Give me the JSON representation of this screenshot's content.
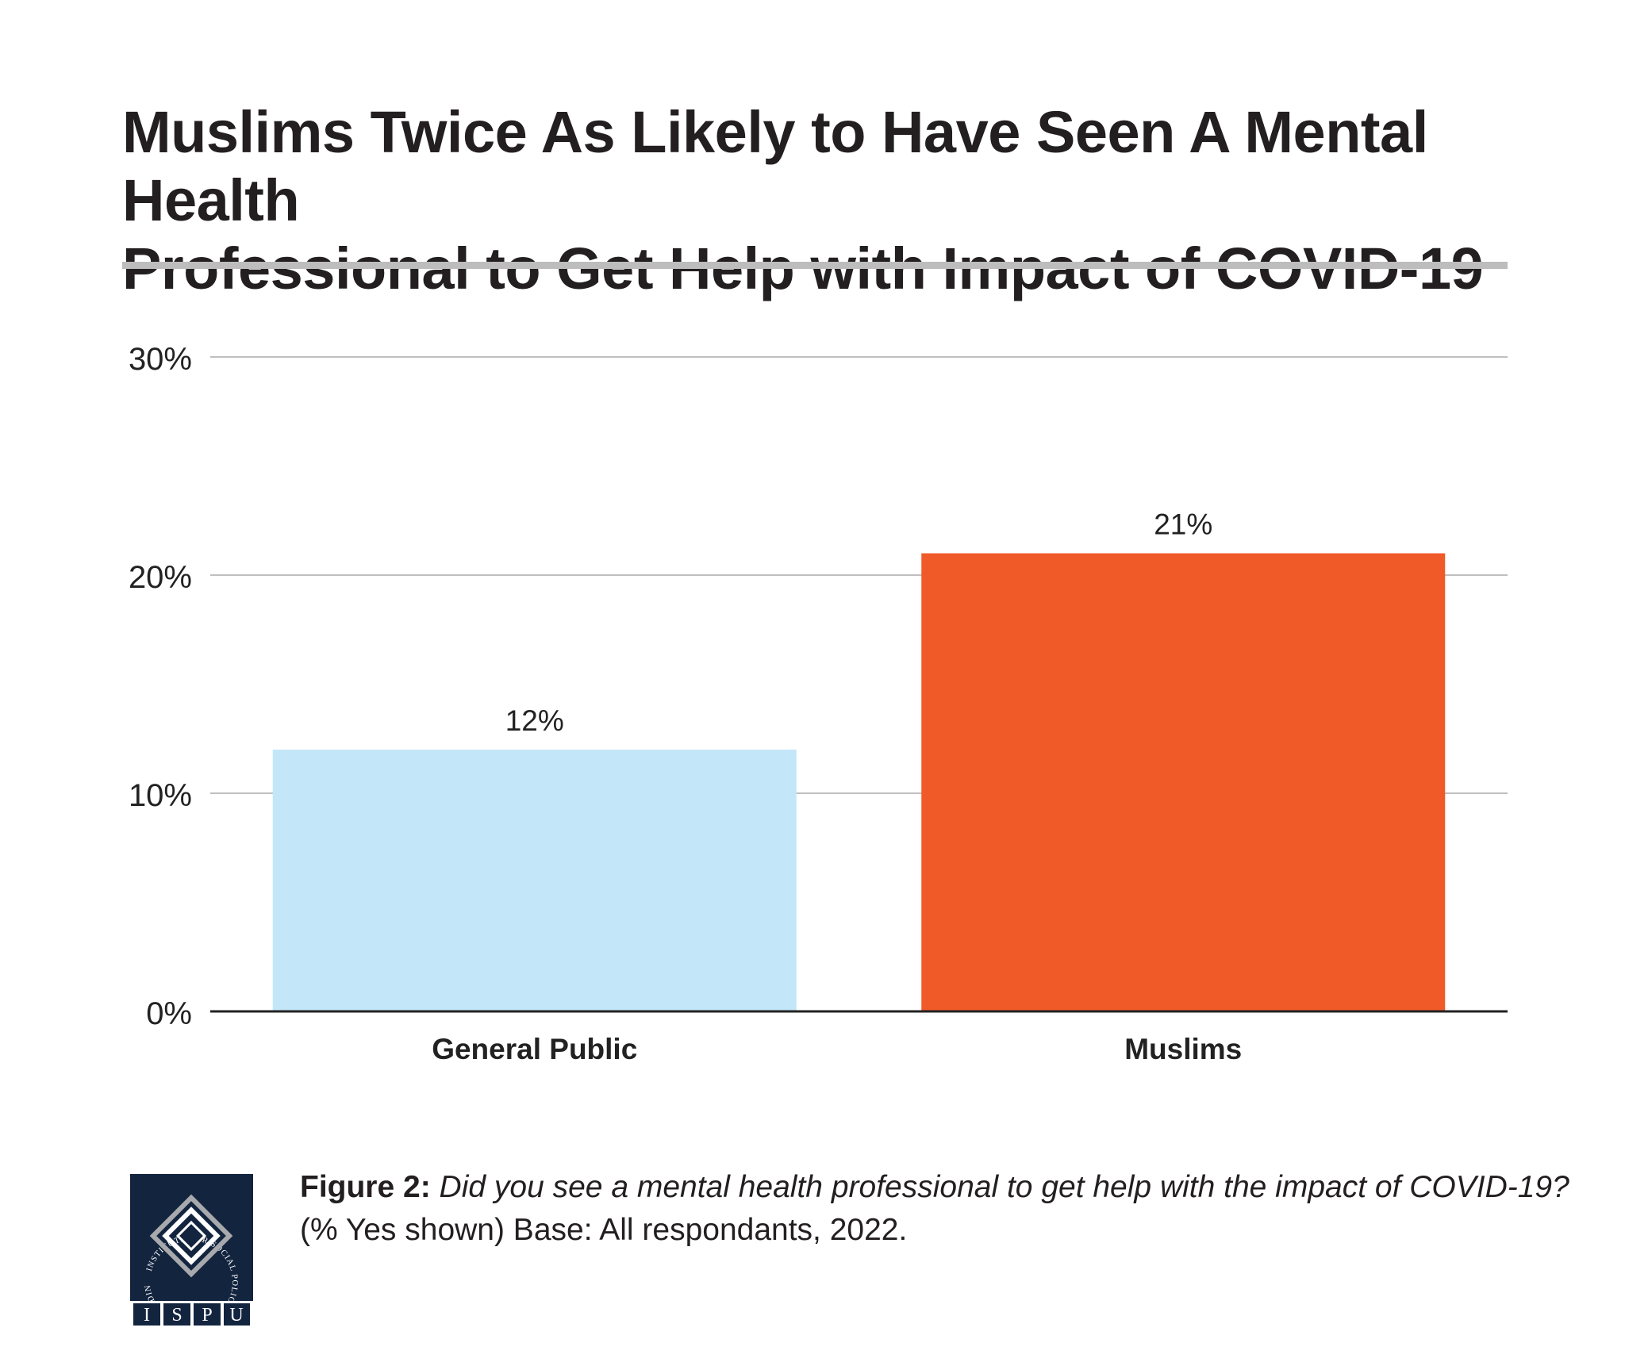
{
  "chart_data": {
    "type": "bar",
    "title": "Muslims Twice As Likely to Have Seen A Mental Health\nProfessional to Get Help with Impact of COVID-19",
    "categories": [
      "General Public",
      "Muslims"
    ],
    "values": [
      12,
      21
    ],
    "value_labels": [
      "12%",
      "21%"
    ],
    "bar_colors": [
      "#c3e7f9",
      "#f05a28"
    ],
    "ylim": [
      0,
      30
    ],
    "yticks": [
      0,
      10,
      20,
      30
    ],
    "ytick_labels": [
      "0%",
      "10%",
      "20%",
      "30%"
    ],
    "xlabel": "",
    "ylabel": "",
    "grid": true,
    "legend": "none"
  },
  "caption": {
    "label": "Figure 2:",
    "question": "Did you see a mental health professional to get help with the impact of COVID-19?",
    "note": "(% Yes shown) Base: All respondants, 2022."
  },
  "logo": {
    "ring_text": "INSTITUTE FOR SOCIAL POLICY AND UNDERSTANDING",
    "letters": [
      "I",
      "S",
      "P",
      "U"
    ]
  },
  "colors": {
    "title": "#231f20",
    "rule": "#bdbdbd",
    "grid": "#bfbfbf",
    "axis": "#222222",
    "logo_bg": "#13243f"
  }
}
